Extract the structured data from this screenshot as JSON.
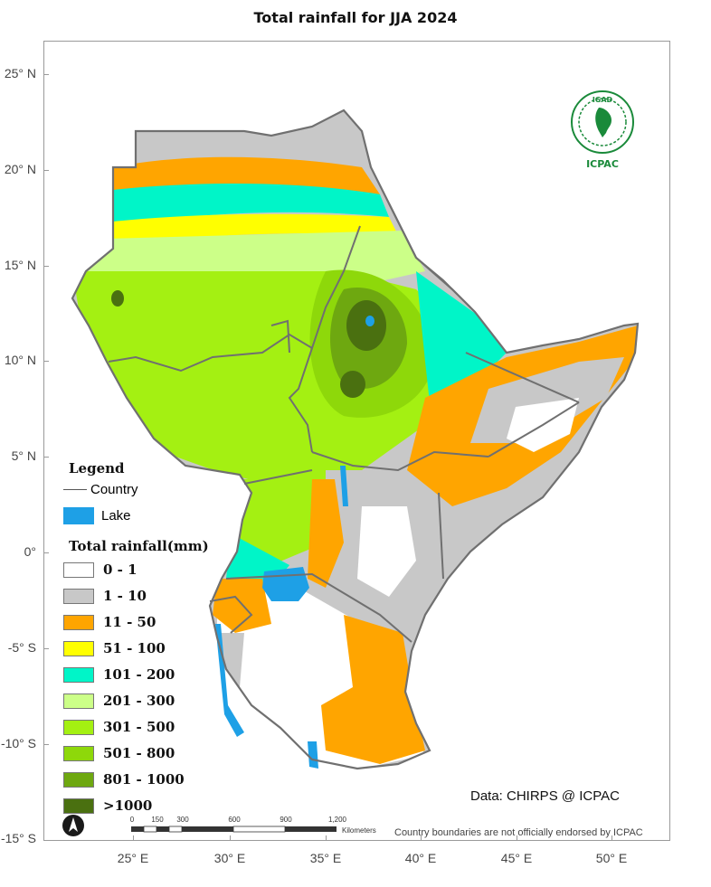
{
  "title": "Total rainfall  for JJA 2024",
  "axes": {
    "lat_labels": [
      "25° N",
      "20° N",
      "15° N",
      "10° N",
      "5° N",
      "0°",
      "-5° S",
      "-10° S",
      "-15° S"
    ],
    "lon_labels": [
      "25° E",
      "30° E",
      "35° E",
      "40° E",
      "45° E",
      "50° E"
    ]
  },
  "legend": {
    "heading": "Legend",
    "country_label": "Country",
    "lake_label": "Lake",
    "rainfall_heading": "Total rainfall(mm)",
    "classes": [
      {
        "label": "0 - 1",
        "color": "#ffffff"
      },
      {
        "label": "1 - 10",
        "color": "#c8c8c8"
      },
      {
        "label": "11 - 50",
        "color": "#ffa500"
      },
      {
        "label": "51 - 100",
        "color": "#ffff00"
      },
      {
        "label": "101 - 200",
        "color": "#00f5c8"
      },
      {
        "label": "201 - 300",
        "color": "#ccff88"
      },
      {
        "label": "301 - 500",
        "color": "#a4f012"
      },
      {
        "label": "501 - 800",
        "color": "#8ed80a"
      },
      {
        "label": "801 - 1000",
        "color": "#6ea810"
      },
      {
        "label": ">1000",
        "color": "#4a7010"
      }
    ],
    "lake_color": "#1ea0e6"
  },
  "data_credit": "Data: CHIRPS @ ICPAC",
  "disclaimer": "Country boundaries are not officially endorsed by ICPAC",
  "scale_bar": {
    "ticks": [
      "0",
      "150",
      "300",
      "600",
      "900",
      "1,200"
    ],
    "unit": "Kilometers"
  },
  "logo": {
    "top_text": "IGAD",
    "bottom_text": "ICPAC",
    "color": "#1a8a3a"
  },
  "north_arrow_label": "N"
}
